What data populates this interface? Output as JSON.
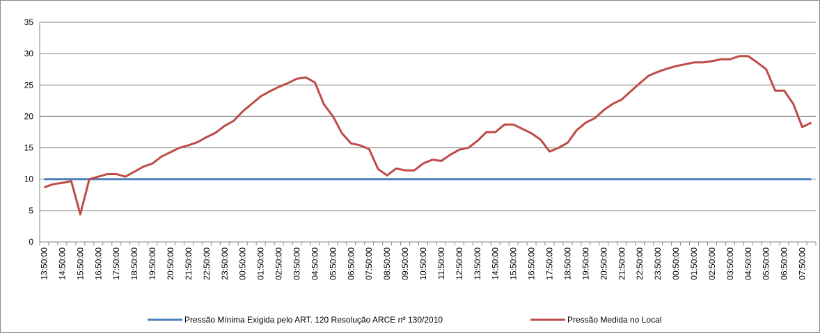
{
  "chart_data": {
    "type": "line",
    "categories": [
      "13:50:00",
      null,
      "14:50:00",
      null,
      "15:50:00",
      null,
      "16:50:00",
      null,
      "17:50:00",
      null,
      "18:50:00",
      null,
      "19:50:00",
      null,
      "20:50:00",
      null,
      "21:50:00",
      null,
      "22:50:00",
      null,
      "23:50:00",
      null,
      "00:50:00",
      null,
      "01:50:00",
      null,
      "02:50:00",
      null,
      "03:50:00",
      null,
      "04:50:00",
      null,
      "05:50:00",
      null,
      "06:50:00",
      null,
      "07:50:00",
      null,
      "08:50:00",
      null,
      "09:50:00",
      null,
      "10:50:00",
      null,
      "11:50:00",
      null,
      "12:50:00",
      null,
      "13:50:00",
      null,
      "14:50:00",
      null,
      "15:50:00",
      null,
      "16:50:00",
      null,
      "17:50:00",
      null,
      "18:50:00",
      null,
      "19:50:00",
      null,
      "20:50:00",
      null,
      "21:50:00",
      null,
      "22:50:00",
      null,
      "23:50:00",
      null,
      "00:50:00",
      null,
      "01:50:00",
      null,
      "02:50:00",
      null,
      "03:50:00",
      null,
      "04:50:00",
      null,
      "05:50:00",
      null,
      "06:50:00",
      null,
      "07:50:00",
      null
    ],
    "series": [
      {
        "name": "Pressão Mínima Exigida pelo ART. 120 Resolução ARCE nº 130/2010",
        "color": "#4a7ebb",
        "values": [
          10,
          10,
          10,
          10,
          10,
          10,
          10,
          10,
          10,
          10,
          10,
          10,
          10,
          10,
          10,
          10,
          10,
          10,
          10,
          10,
          10,
          10,
          10,
          10,
          10,
          10,
          10,
          10,
          10,
          10,
          10,
          10,
          10,
          10,
          10,
          10,
          10,
          10,
          10,
          10,
          10,
          10,
          10,
          10,
          10,
          10,
          10,
          10,
          10,
          10,
          10,
          10,
          10,
          10,
          10,
          10,
          10,
          10,
          10,
          10,
          10,
          10,
          10,
          10,
          10,
          10,
          10,
          10,
          10,
          10,
          10,
          10,
          10,
          10,
          10,
          10,
          10,
          10,
          10,
          10,
          10,
          10,
          10,
          10,
          10,
          10
        ]
      },
      {
        "name": "Pressão Medida no Local",
        "color": "#be4b48",
        "values": [
          8.7,
          9.2,
          9.4,
          9.7,
          4.4,
          10.0,
          10.4,
          10.8,
          10.8,
          10.4,
          11.2,
          12.0,
          12.5,
          13.6,
          14.3,
          15.0,
          15.4,
          15.9,
          16.7,
          17.4,
          18.5,
          19.3,
          20.8,
          22.0,
          23.2,
          24.0,
          24.7,
          25.3,
          26.0,
          26.2,
          25.4,
          21.9,
          20.0,
          17.3,
          15.7,
          15.4,
          14.8,
          11.6,
          10.6,
          11.7,
          11.4,
          11.4,
          12.5,
          13.1,
          12.9,
          13.9,
          14.7,
          15.0,
          16.1,
          17.5,
          17.5,
          18.7,
          18.7,
          18.0,
          17.3,
          16.3,
          14.4,
          15.0,
          15.8,
          17.8,
          19.0,
          19.7,
          21.0,
          22.0,
          22.7,
          24.0,
          25.3,
          26.5,
          27.1,
          27.6,
          28.0,
          28.3,
          28.6,
          28.6,
          28.8,
          29.1,
          29.1,
          29.6,
          29.6,
          28.6,
          27.5,
          24.1,
          24.1,
          22.0,
          18.3,
          19.0
        ]
      }
    ],
    "ylim": [
      0,
      35
    ],
    "yticks": [
      0,
      5,
      10,
      15,
      20,
      25,
      30,
      35
    ],
    "grid": true
  }
}
